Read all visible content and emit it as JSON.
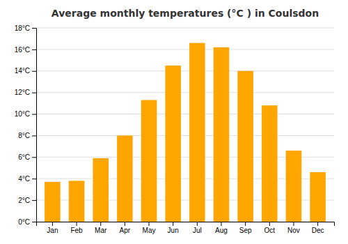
{
  "chart_data": {
    "type": "bar",
    "title": "Average monthly temperatures (°C ) in Coulsdon",
    "categories": [
      "Jan",
      "Feb",
      "Mar",
      "Apr",
      "May",
      "Jun",
      "Jul",
      "Aug",
      "Sep",
      "Oct",
      "Nov",
      "Dec"
    ],
    "values": [
      3.7,
      3.8,
      5.9,
      8.0,
      11.3,
      14.5,
      16.6,
      16.2,
      14.0,
      10.8,
      6.6,
      4.6
    ],
    "color": "#FFA500",
    "ylim": [
      0,
      18
    ],
    "yticks": [
      {
        "value": 0,
        "label": "0°C"
      },
      {
        "value": 2,
        "label": "2°C"
      },
      {
        "value": 4,
        "label": "4°C"
      },
      {
        "value": 6,
        "label": "6°C"
      },
      {
        "value": 8,
        "label": "8°C"
      },
      {
        "value": 10,
        "label": "10°C"
      },
      {
        "value": 12,
        "label": "12°C"
      },
      {
        "value": 14,
        "label": "14°C"
      },
      {
        "value": 16,
        "label": "16°C"
      },
      {
        "value": 18,
        "label": "18°C"
      }
    ],
    "grid": true
  }
}
